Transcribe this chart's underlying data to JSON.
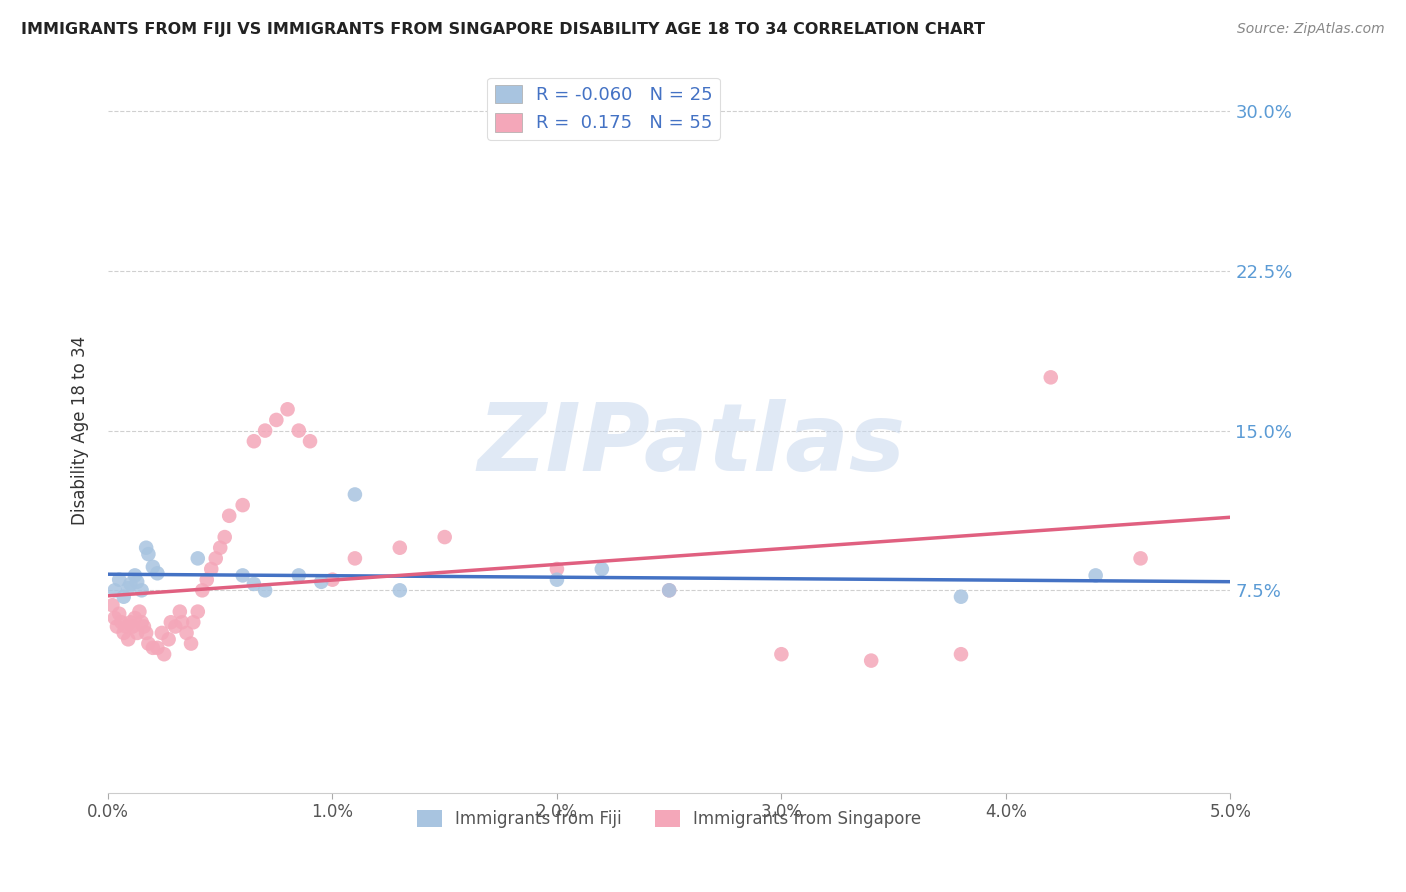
{
  "title": "IMMIGRANTS FROM FIJI VS IMMIGRANTS FROM SINGAPORE DISABILITY AGE 18 TO 34 CORRELATION CHART",
  "source": "Source: ZipAtlas.com",
  "ylabel": "Disability Age 18 to 34",
  "xlim": [
    0.0,
    0.05
  ],
  "ylim": [
    -0.02,
    0.32
  ],
  "x_ticks": [
    0.0,
    0.01,
    0.02,
    0.03,
    0.04,
    0.05
  ],
  "x_tick_labels": [
    "0.0%",
    "1.0%",
    "2.0%",
    "3.0%",
    "4.0%",
    "5.0%"
  ],
  "y_ticks_right": [
    0.075,
    0.15,
    0.225,
    0.3
  ],
  "y_tick_labels_right": [
    "7.5%",
    "15.0%",
    "22.5%",
    "30.0%"
  ],
  "fiji_color": "#a8c4e0",
  "singapore_color": "#f4a7b9",
  "fiji_R": -0.06,
  "fiji_N": 25,
  "singapore_R": 0.175,
  "singapore_N": 55,
  "fiji_line_color": "#4472c4",
  "singapore_line_color": "#e06080",
  "fiji_x": [
    0.0003,
    0.0005,
    0.0007,
    0.0009,
    0.001,
    0.0012,
    0.0013,
    0.0015,
    0.0017,
    0.0018,
    0.002,
    0.0022,
    0.004,
    0.006,
    0.0065,
    0.007,
    0.0085,
    0.0095,
    0.011,
    0.013,
    0.02,
    0.022,
    0.025,
    0.038,
    0.044
  ],
  "fiji_y": [
    0.075,
    0.08,
    0.072,
    0.076,
    0.078,
    0.082,
    0.079,
    0.075,
    0.095,
    0.092,
    0.086,
    0.083,
    0.09,
    0.082,
    0.078,
    0.075,
    0.082,
    0.079,
    0.12,
    0.075,
    0.08,
    0.085,
    0.075,
    0.072,
    0.082
  ],
  "singapore_x": [
    0.0002,
    0.0003,
    0.0004,
    0.0005,
    0.0006,
    0.0007,
    0.0008,
    0.0009,
    0.001,
    0.0011,
    0.0012,
    0.0013,
    0.0014,
    0.0015,
    0.0016,
    0.0017,
    0.0018,
    0.002,
    0.0022,
    0.0024,
    0.0025,
    0.0027,
    0.0028,
    0.003,
    0.0032,
    0.0033,
    0.0035,
    0.0037,
    0.0038,
    0.004,
    0.0042,
    0.0044,
    0.0046,
    0.0048,
    0.005,
    0.0052,
    0.0054,
    0.006,
    0.0065,
    0.007,
    0.0075,
    0.008,
    0.0085,
    0.009,
    0.01,
    0.011,
    0.013,
    0.015,
    0.02,
    0.025,
    0.03,
    0.034,
    0.038,
    0.042,
    0.046
  ],
  "singapore_y": [
    0.068,
    0.062,
    0.058,
    0.064,
    0.06,
    0.055,
    0.058,
    0.052,
    0.06,
    0.058,
    0.062,
    0.055,
    0.065,
    0.06,
    0.058,
    0.055,
    0.05,
    0.048,
    0.048,
    0.055,
    0.045,
    0.052,
    0.06,
    0.058,
    0.065,
    0.06,
    0.055,
    0.05,
    0.06,
    0.065,
    0.075,
    0.08,
    0.085,
    0.09,
    0.095,
    0.1,
    0.11,
    0.115,
    0.145,
    0.15,
    0.155,
    0.16,
    0.15,
    0.145,
    0.08,
    0.09,
    0.095,
    0.1,
    0.085,
    0.075,
    0.045,
    0.042,
    0.045,
    0.175,
    0.09
  ],
  "background_color": "#ffffff",
  "grid_color": "#d0d0d0"
}
